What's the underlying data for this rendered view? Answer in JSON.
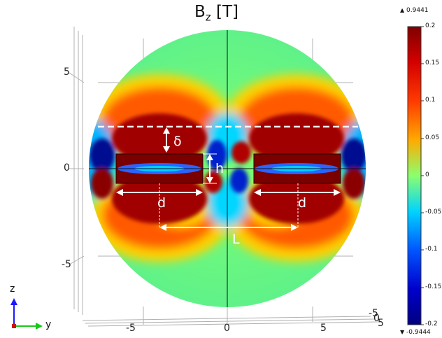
{
  "title": {
    "main": "B",
    "sub": "z",
    "unit": "[T]"
  },
  "colorbar": {
    "max_marker": "0.9441",
    "min_marker": "-0.9444",
    "ticks": [
      "0.2",
      "0.15",
      "0.1",
      "0.05",
      "0",
      "-0.05",
      "-0.1",
      "-0.15",
      "-0.2"
    ],
    "colors": [
      "#800000",
      "#d40000",
      "#ff3a00",
      "#ffaa00",
      "#8cff6e",
      "#00d4ff",
      "#0055ff",
      "#0000cc",
      "#000080"
    ]
  },
  "annotations": {
    "delta": "δ",
    "h": "h",
    "d_left": "d",
    "d_right": "d",
    "L": "L"
  },
  "axes": {
    "vertical_ticks": [
      "5",
      "0",
      "-5"
    ],
    "horizontal_ticks": [
      "-5",
      "0",
      "5"
    ],
    "depth_ticks": [
      "-5",
      "0",
      "5"
    ]
  },
  "triad": {
    "z_label": "z",
    "y_label": "y",
    "z_color": "#1a1aff",
    "y_color": "#19c819"
  }
}
